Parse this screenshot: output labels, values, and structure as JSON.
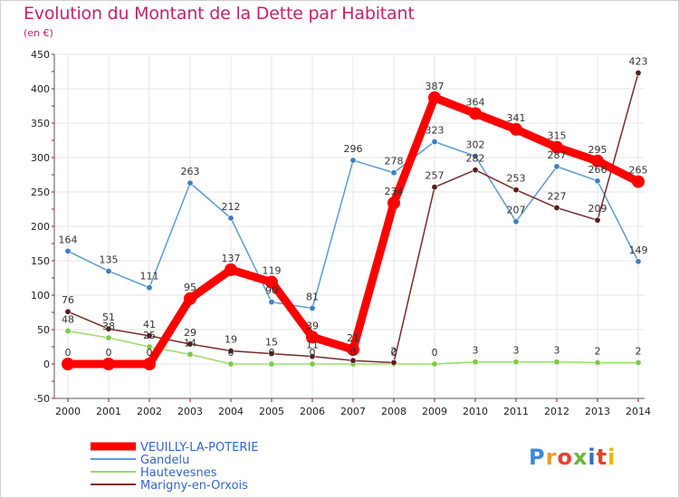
{
  "logo": {
    "text": "Proxiti"
  },
  "chart_data": {
    "type": "line",
    "title": "Evolution du Montant de la Dette par Habitant",
    "subtitle": "(en €)",
    "xlabel": "",
    "ylabel": "",
    "ylim": [
      -50,
      450
    ],
    "yticks": [
      -50,
      0,
      50,
      100,
      150,
      200,
      250,
      300,
      350,
      400,
      450
    ],
    "categories": [
      "2000",
      "2001",
      "2002",
      "2003",
      "2004",
      "2005",
      "2006",
      "2007",
      "2008",
      "2009",
      "2010",
      "2011",
      "2012",
      "2013",
      "2014"
    ],
    "grid": true,
    "legend_position": "bottom-left",
    "series": [
      {
        "name": "VEUILLY-LA-POTERIE",
        "color": "#ff0000",
        "marker_color": "#ff0000",
        "legend_color": "#3366cc",
        "values": [
          0,
          0,
          0,
          95,
          137,
          119,
          39,
          21,
          234,
          387,
          364,
          341,
          315,
          295,
          265
        ],
        "labels": [
          "0",
          "0",
          "0",
          "95",
          "137",
          "119",
          "39",
          "21",
          "234",
          "387",
          "364",
          "341",
          "315",
          "295",
          "265"
        ]
      },
      {
        "name": "Gandelu",
        "color": "#5b9bd5",
        "marker_color": "#3d7fc2",
        "legend_color": "#3366cc",
        "values": [
          164,
          135,
          111,
          263,
          212,
          90,
          81,
          296,
          278,
          323,
          302,
          207,
          287,
          266,
          149
        ],
        "labels": [
          "164",
          "135",
          "111",
          "263",
          "212",
          "90",
          "81",
          "296",
          "278",
          "323",
          "302",
          "207",
          "287",
          "266",
          "149"
        ]
      },
      {
        "name": "Hautevesnes",
        "color": "#99dd66",
        "marker_color": "#77cc44",
        "legend_color": "#3366cc",
        "values": [
          48,
          38,
          25,
          14,
          0,
          0,
          0,
          0,
          0,
          0,
          3,
          3,
          3,
          2,
          2
        ],
        "labels": [
          "48",
          "38",
          "25",
          "14",
          "0",
          "0",
          "0",
          "0",
          "0",
          "0",
          "3",
          "3",
          "3",
          "2",
          "2"
        ]
      },
      {
        "name": "Marigny-en-Orxois",
        "color": "#7a2a2a",
        "marker_color": "#5a1a1a",
        "legend_color": "#3366cc",
        "values": [
          76,
          51,
          41,
          29,
          19,
          15,
          11,
          5,
          2,
          257,
          282,
          253,
          227,
          209,
          423
        ],
        "labels": [
          "76",
          "51",
          "41",
          "29",
          "19",
          "15",
          "11",
          "5",
          "2",
          "257",
          "282",
          "253",
          "227",
          "209",
          "423"
        ]
      }
    ]
  }
}
